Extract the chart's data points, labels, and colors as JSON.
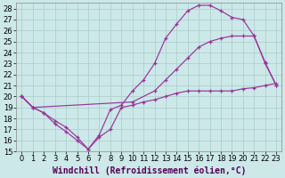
{
  "background_color": "#cce8e8",
  "grid_color": "#aacccc",
  "line_color": "#993399",
  "xlim": [
    -0.5,
    23.5
  ],
  "ylim": [
    15,
    28.5
  ],
  "xlabel": "Windchill (Refroidissement éolien,°C)",
  "xlabel_fontsize": 7,
  "xticks": [
    0,
    1,
    2,
    3,
    4,
    5,
    6,
    7,
    8,
    9,
    10,
    11,
    12,
    13,
    14,
    15,
    16,
    17,
    18,
    19,
    20,
    21,
    22,
    23
  ],
  "yticks": [
    15,
    16,
    17,
    18,
    19,
    20,
    21,
    22,
    23,
    24,
    25,
    26,
    27,
    28
  ],
  "tick_fontsize": 6,
  "line1_x": [
    0,
    1,
    2,
    3,
    4,
    5,
    6,
    7,
    8,
    9,
    10,
    11,
    12,
    13,
    14,
    15,
    16,
    17,
    18,
    19,
    20,
    21,
    22,
    23
  ],
  "line1_y": [
    20.0,
    19.0,
    18.5,
    17.8,
    17.2,
    16.3,
    15.2,
    16.5,
    18.8,
    19.2,
    20.5,
    21.5,
    23.0,
    25.3,
    26.6,
    27.8,
    28.3,
    28.3,
    27.8,
    27.2,
    27.0,
    25.5,
    23.1,
    21.0
  ],
  "line2_x": [
    0,
    1,
    10,
    12,
    13,
    14,
    15,
    16,
    17,
    18,
    19,
    20,
    21,
    22,
    23
  ],
  "line2_y": [
    20.0,
    19.0,
    19.5,
    20.5,
    21.5,
    22.5,
    23.5,
    24.5,
    25.0,
    25.3,
    25.5,
    25.5,
    25.5,
    23.0,
    21.0
  ],
  "line3_x": [
    0,
    1,
    2,
    3,
    4,
    5,
    6,
    7,
    8,
    9,
    10,
    11,
    12,
    13,
    14,
    15,
    16,
    17,
    18,
    19,
    20,
    21,
    22,
    23
  ],
  "line3_y": [
    20.0,
    19.0,
    18.5,
    17.5,
    16.8,
    16.0,
    15.2,
    16.3,
    17.0,
    19.0,
    19.2,
    19.5,
    19.7,
    20.0,
    20.3,
    20.5,
    20.5,
    20.5,
    20.5,
    20.5,
    20.7,
    20.8,
    21.0,
    21.2
  ]
}
